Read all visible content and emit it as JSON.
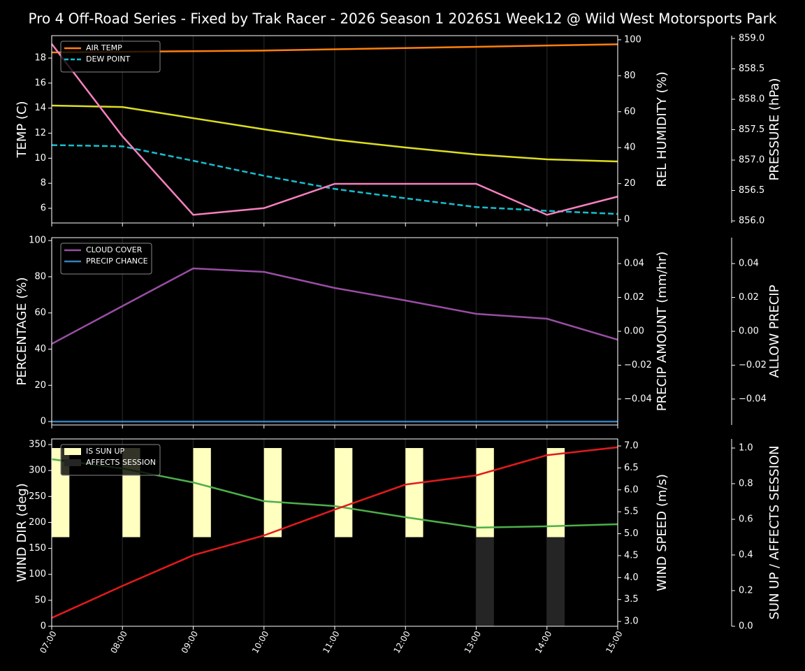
{
  "chart_data": [
    {
      "type": "line",
      "title": "Pro 4 Off-Road Series - Fixed by Trak Racer - 2026 Season 1 2026S1 Week12 @ Wild West Motorsports Park",
      "ylabel": "TEMP (C)",
      "ylabel_color": "#ffffff",
      "ylim": [
        4.83,
        19.79
      ],
      "yticks": [
        6,
        8,
        10,
        12,
        14,
        16,
        18
      ],
      "y2label": "REL HUMIDITY (%)",
      "y2label_color": "#d4d42a",
      "y2lim": [
        -1.9,
        102.3
      ],
      "y2ticks": [
        0,
        20,
        40,
        60,
        80,
        100
      ],
      "y3label": "PRESSURE (hPa)",
      "y3label_color": "#f781bf",
      "y3lim": [
        855.966,
        859.046
      ],
      "y3ticks": [
        {
          "value": 856,
          "label": "856.0"
        },
        {
          "value": 856.5,
          "label": "856.5"
        },
        {
          "value": 857,
          "label": "857.0"
        },
        {
          "value": 857.5,
          "label": "857.5"
        },
        {
          "value": 858,
          "label": "858.0"
        },
        {
          "value": 858.5,
          "label": "858.5"
        },
        {
          "value": 859,
          "label": "859.0"
        }
      ],
      "grid": "x",
      "legend": "upper left",
      "series": [
        {
          "name": "AIR TEMP",
          "color": "#ff7f0e",
          "axis": "y",
          "kind": "line",
          "dashed": false,
          "in_legend": true,
          "values": [
            18.45,
            18.5,
            18.55,
            18.6,
            18.7,
            18.8,
            18.9,
            19.0,
            19.1
          ]
        },
        {
          "name": "DEW POINT",
          "color": "#17becf",
          "axis": "y",
          "kind": "line",
          "dashed": true,
          "in_legend": true,
          "values": [
            11.05,
            10.95,
            9.8,
            8.6,
            7.55,
            6.8,
            6.1,
            5.8,
            5.55
          ]
        },
        {
          "name": "REL HUMIDITY",
          "color": "#dddd22",
          "axis": "y2",
          "kind": "line",
          "dashed": false,
          "in_legend": false,
          "values": [
            63.4,
            62.6,
            56.4,
            50.2,
            44.4,
            40.1,
            36.2,
            33.5,
            32.3
          ]
        },
        {
          "name": "PRESSURE",
          "color": "#f781bf",
          "axis": "y3",
          "kind": "line",
          "dashed": false,
          "in_legend": false,
          "values": [
            858.91,
            857.39,
            856.1,
            856.21,
            856.61,
            856.61,
            856.61,
            856.1,
            856.4
          ]
        }
      ]
    },
    {
      "type": "line",
      "ylabel": "PERCENTAGE (%)",
      "ylabel_color": "#ffffff",
      "ylim": [
        -1.9,
        101.6
      ],
      "yticks": [
        0,
        20,
        40,
        60,
        80,
        100
      ],
      "y2label": "PRECIP AMOUNT (mm/hr)",
      "y2label_color": "#a0522d",
      "y2lim": [
        -0.0553,
        0.0553
      ],
      "y2ticks": [
        {
          "value": -0.04,
          "label": "−0.04"
        },
        {
          "value": -0.02,
          "label": "−0.02"
        },
        {
          "value": 0,
          "label": "0.00"
        },
        {
          "value": 0.02,
          "label": "0.02"
        },
        {
          "value": 0.04,
          "label": "0.04"
        }
      ],
      "y3label": "ALLOW PRECIP",
      "y3label_color": "#ffffff",
      "y3lim": [
        -0.0553,
        0.0553
      ],
      "y3ticks": [
        {
          "value": -0.04,
          "label": "−0.04"
        },
        {
          "value": -0.02,
          "label": "−0.02"
        },
        {
          "value": 0,
          "label": "0.00"
        },
        {
          "value": 0.02,
          "label": "0.02"
        },
        {
          "value": 0.04,
          "label": "0.04"
        }
      ],
      "grid": "x",
      "legend": "upper left",
      "series": [
        {
          "name": "CLOUD COVER",
          "color": "#984ea3",
          "axis": "y",
          "kind": "line",
          "dashed": false,
          "in_legend": true,
          "values": [
            42.9,
            63.8,
            84.6,
            82.7,
            73.8,
            66.9,
            59.5,
            56.8,
            45.2
          ]
        },
        {
          "name": "PRECIP CHANCE",
          "color": "#377eb8",
          "axis": "y",
          "kind": "line",
          "dashed": false,
          "in_legend": true,
          "values": [
            0,
            0,
            0,
            0,
            0,
            0,
            0,
            0,
            0
          ]
        }
      ]
    },
    {
      "type": "line",
      "categories": [
        "07:00",
        "08:00",
        "09:00",
        "10:00",
        "11:00",
        "12:00",
        "13:00",
        "14:00",
        "15:00"
      ],
      "ylabel": "WIND DIR (deg)",
      "ylabel_color": "#4daf4a",
      "ylim": [
        0,
        360.8
      ],
      "yticks": [
        0,
        50,
        100,
        150,
        200,
        250,
        300,
        350
      ],
      "y2label": "WIND SPEED (m/s)",
      "y2label_color": "#e41a1c",
      "y2lim": [
        2.89,
        7.16
      ],
      "y2ticks": [
        {
          "value": 3,
          "label": "3.0"
        },
        {
          "value": 3.5,
          "label": "3.5"
        },
        {
          "value": 4,
          "label": "4.0"
        },
        {
          "value": 4.5,
          "label": "4.5"
        },
        {
          "value": 5,
          "label": "5.0"
        },
        {
          "value": 5.5,
          "label": "5.5"
        },
        {
          "value": 6,
          "label": "6.0"
        },
        {
          "value": 6.5,
          "label": "6.5"
        },
        {
          "value": 7,
          "label": "7.0"
        }
      ],
      "y3label": "SUN UP / AFFECTS SESSION",
      "y3label_color": "#ffffff",
      "y3lim": [
        0,
        1.051
      ],
      "y3ticks": [
        {
          "value": 0,
          "label": "0.0"
        },
        {
          "value": 0.2,
          "label": "0.2"
        },
        {
          "value": 0.4,
          "label": "0.4"
        },
        {
          "value": 0.6,
          "label": "0.6"
        },
        {
          "value": 0.8,
          "label": "0.8"
        },
        {
          "value": 1,
          "label": "1.0"
        }
      ],
      "grid": "x",
      "legend": "upper left",
      "series": [
        {
          "name": "IS SUN UP",
          "color": "#ffffc0",
          "axis": "y3",
          "kind": "bar",
          "bottom": 0.5,
          "in_legend": true,
          "values": [
            0.5,
            0.5,
            0.5,
            0.5,
            0.5,
            0.5,
            0.5,
            0.5,
            0
          ]
        },
        {
          "name": "AFFECTS SESSION",
          "color": "#252525",
          "axis": "y3",
          "kind": "bar",
          "bottom": 0,
          "in_legend": true,
          "values": [
            0,
            0,
            0,
            0,
            0,
            0,
            0.5,
            0.5,
            0
          ]
        },
        {
          "name": "WIND DIR",
          "color": "#4daf4a",
          "axis": "y",
          "kind": "line",
          "dashed": false,
          "in_legend": false,
          "values": [
            321.7,
            304,
            277,
            241,
            231.5,
            210,
            190,
            192.5,
            196.5
          ]
        },
        {
          "name": "WIND SPEED",
          "color": "#e41a1c",
          "axis": "y2",
          "kind": "line",
          "dashed": false,
          "in_legend": false,
          "values": [
            3.08,
            3.81,
            4.51,
            4.96,
            5.55,
            6.12,
            6.33,
            6.79,
            6.97
          ]
        }
      ]
    }
  ]
}
